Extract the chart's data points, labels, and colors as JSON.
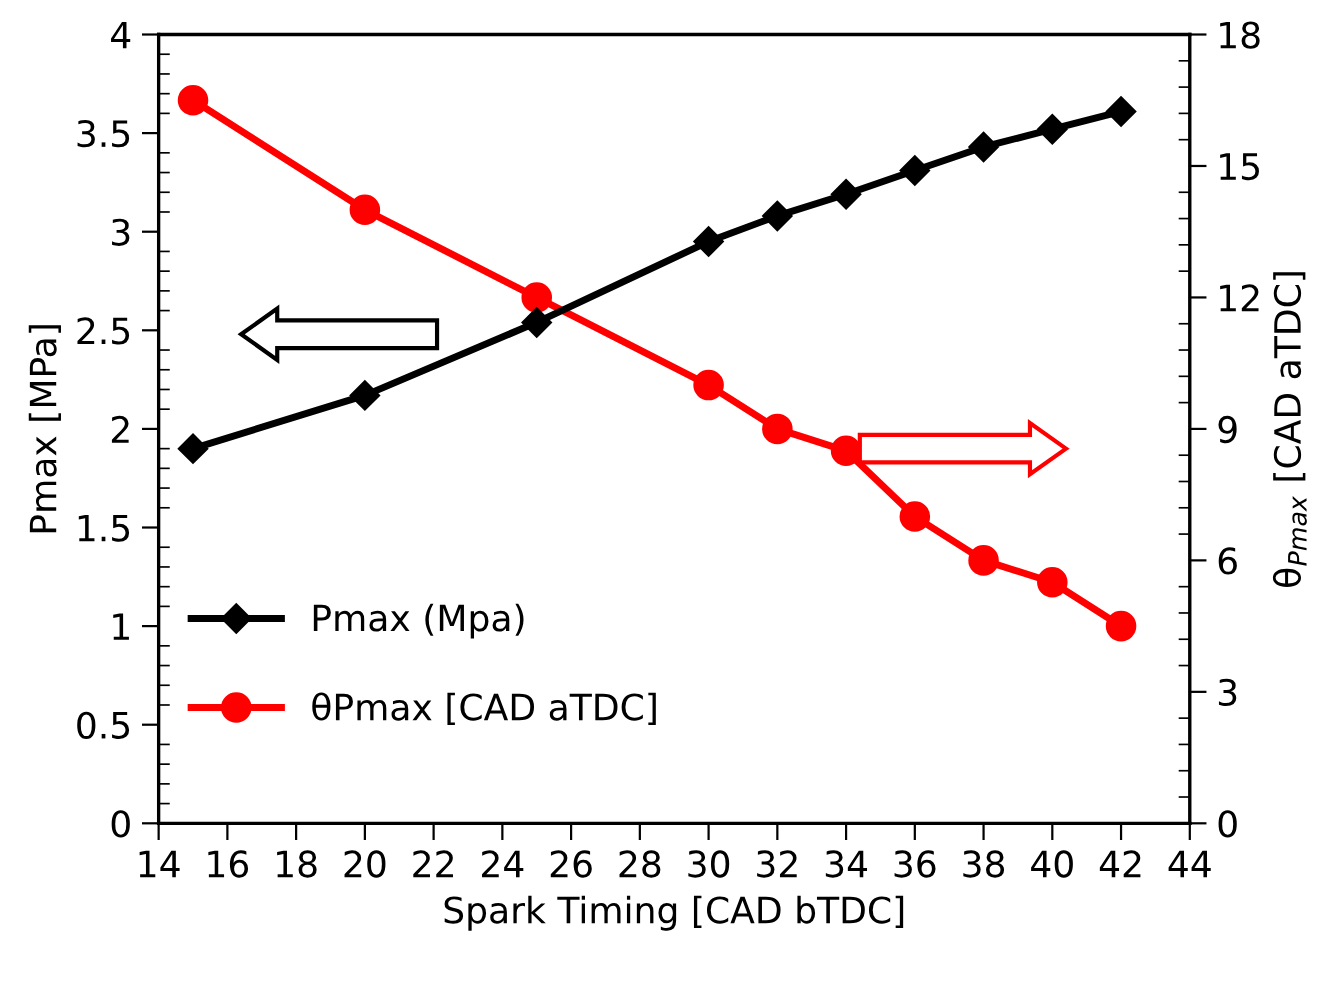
{
  "chart_data": {
    "type": "line",
    "xlabel": "Spark Timing [CAD bTDC]",
    "ylabel": "Pmax [MPa]",
    "y2label": "θ$_{Pmax}$ [CAD aTDC]",
    "x": [
      15,
      20,
      25,
      30,
      32,
      34,
      36,
      38,
      40,
      42
    ],
    "series": [
      {
        "name": "Pmax (Mpa)",
        "color": "#000000",
        "marker": "diamond",
        "values": [
          1.9,
          2.17,
          2.54,
          2.95,
          3.08,
          3.19,
          3.31,
          3.43,
          3.52,
          3.61
        ]
      },
      {
        "name": "θPmax [CAD aTDC]",
        "color": "#ff0000",
        "marker": "circle",
        "axis": "y2",
        "values": [
          16.5,
          14.0,
          12.0,
          10.0,
          9.0,
          8.5,
          7.0,
          6.0,
          5.5,
          4.5
        ]
      }
    ],
    "xlim": [
      14,
      44
    ],
    "xticks": [
      14,
      16,
      18,
      20,
      22,
      24,
      26,
      28,
      30,
      32,
      34,
      36,
      38,
      40,
      42,
      44
    ],
    "ylim": [
      0,
      4
    ],
    "yticks": [
      0,
      0.5,
      1,
      1.5,
      2,
      2.5,
      3,
      3.5,
      4
    ],
    "y2lim": [
      0,
      18
    ],
    "y2ticks": [
      0,
      3,
      6,
      9,
      12,
      15,
      18
    ],
    "grid": false,
    "legend": "bottom left",
    "line_style": "solid"
  }
}
